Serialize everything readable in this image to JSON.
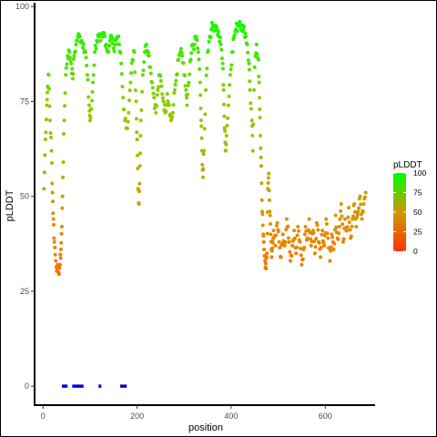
{
  "chart_data": {
    "type": "scatter",
    "title": "",
    "xlabel": "position",
    "ylabel": "pLDDT",
    "xlim": [
      -18,
      706
    ],
    "ylim": [
      -5,
      101
    ],
    "x_ticks": [
      0,
      200,
      400,
      600
    ],
    "y_ticks": [
      0,
      25,
      50,
      75,
      100
    ],
    "grid": false,
    "legend": {
      "title": "pLDDT",
      "placement": "right",
      "labels": [
        "100",
        "75",
        "50",
        "25",
        "0"
      ],
      "gradient": [
        "#00ff00",
        "#ff3300"
      ]
    },
    "colors": {
      "high": "#66ee00",
      "mid": "#cca000",
      "low": "#ee8000",
      "baseline_marks": "#0000dd"
    },
    "baseline_segments": [
      [
        40,
        52
      ],
      [
        62,
        86
      ],
      [
        118,
        124
      ],
      [
        164,
        178
      ]
    ],
    "control_points": [
      [
        2,
        52
      ],
      [
        5,
        65
      ],
      [
        8,
        74
      ],
      [
        10,
        79
      ],
      [
        12,
        82
      ],
      [
        15,
        70
      ],
      [
        18,
        62
      ],
      [
        20,
        51
      ],
      [
        22,
        44
      ],
      [
        24,
        38
      ],
      [
        27,
        33
      ],
      [
        30,
        31
      ],
      [
        33,
        30
      ],
      [
        36,
        32
      ],
      [
        38,
        36
      ],
      [
        40,
        42
      ],
      [
        42,
        55
      ],
      [
        45,
        70
      ],
      [
        48,
        82
      ],
      [
        52,
        87
      ],
      [
        56,
        88
      ],
      [
        60,
        85
      ],
      [
        63,
        81
      ],
      [
        66,
        87
      ],
      [
        70,
        90
      ],
      [
        74,
        92
      ],
      [
        78,
        92
      ],
      [
        82,
        91
      ],
      [
        86,
        90
      ],
      [
        90,
        88
      ],
      [
        94,
        82
      ],
      [
        98,
        74
      ],
      [
        100,
        70
      ],
      [
        103,
        73
      ],
      [
        106,
        80
      ],
      [
        110,
        88
      ],
      [
        114,
        91
      ],
      [
        118,
        92
      ],
      [
        122,
        91
      ],
      [
        126,
        92
      ],
      [
        130,
        93
      ],
      [
        134,
        90
      ],
      [
        138,
        88
      ],
      [
        142,
        91
      ],
      [
        146,
        92
      ],
      [
        150,
        89
      ],
      [
        154,
        91
      ],
      [
        158,
        92
      ],
      [
        162,
        90
      ],
      [
        166,
        85
      ],
      [
        170,
        76
      ],
      [
        174,
        70
      ],
      [
        178,
        68
      ],
      [
        182,
        72
      ],
      [
        186,
        80
      ],
      [
        190,
        86
      ],
      [
        194,
        88
      ],
      [
        198,
        75
      ],
      [
        200,
        65
      ],
      [
        202,
        52
      ],
      [
        204,
        48
      ],
      [
        206,
        58
      ],
      [
        208,
        70
      ],
      [
        212,
        82
      ],
      [
        216,
        88
      ],
      [
        220,
        90
      ],
      [
        224,
        88
      ],
      [
        228,
        84
      ],
      [
        232,
        80
      ],
      [
        236,
        76
      ],
      [
        240,
        72
      ],
      [
        244,
        78
      ],
      [
        248,
        82
      ],
      [
        252,
        79
      ],
      [
        256,
        75
      ],
      [
        260,
        72
      ],
      [
        264,
        77
      ],
      [
        268,
        74
      ],
      [
        272,
        70
      ],
      [
        276,
        72
      ],
      [
        280,
        78
      ],
      [
        284,
        82
      ],
      [
        288,
        86
      ],
      [
        292,
        88
      ],
      [
        296,
        87
      ],
      [
        300,
        82
      ],
      [
        304,
        78
      ],
      [
        306,
        74
      ],
      [
        310,
        80
      ],
      [
        314,
        86
      ],
      [
        318,
        90
      ],
      [
        322,
        90
      ],
      [
        326,
        92
      ],
      [
        330,
        88
      ],
      [
        334,
        80
      ],
      [
        336,
        70
      ],
      [
        338,
        62
      ],
      [
        340,
        55
      ],
      [
        342,
        62
      ],
      [
        346,
        78
      ],
      [
        350,
        88
      ],
      [
        354,
        92
      ],
      [
        358,
        94
      ],
      [
        362,
        95
      ],
      [
        366,
        95
      ],
      [
        370,
        94
      ],
      [
        374,
        92
      ],
      [
        378,
        90
      ],
      [
        382,
        85
      ],
      [
        384,
        78
      ],
      [
        386,
        68
      ],
      [
        388,
        62
      ],
      [
        390,
        66
      ],
      [
        394,
        74
      ],
      [
        398,
        82
      ],
      [
        402,
        88
      ],
      [
        406,
        92
      ],
      [
        410,
        94
      ],
      [
        414,
        95
      ],
      [
        418,
        96
      ],
      [
        422,
        95
      ],
      [
        426,
        94
      ],
      [
        430,
        93
      ],
      [
        434,
        90
      ],
      [
        438,
        85
      ],
      [
        440,
        78
      ],
      [
        444,
        70
      ],
      [
        446,
        62
      ],
      [
        450,
        84
      ],
      [
        454,
        90
      ],
      [
        458,
        86
      ],
      [
        460,
        76
      ],
      [
        462,
        66
      ],
      [
        464,
        58
      ],
      [
        466,
        46
      ],
      [
        468,
        40
      ],
      [
        470,
        36
      ],
      [
        472,
        33
      ],
      [
        474,
        31
      ],
      [
        476,
        35
      ],
      [
        478,
        52
      ],
      [
        480,
        56
      ],
      [
        482,
        46
      ],
      [
        484,
        40
      ],
      [
        486,
        34
      ],
      [
        488,
        38
      ],
      [
        490,
        41
      ],
      [
        494,
        37
      ],
      [
        498,
        43
      ],
      [
        502,
        38
      ],
      [
        506,
        34
      ],
      [
        510,
        40
      ],
      [
        514,
        37
      ],
      [
        518,
        44
      ],
      [
        522,
        39
      ],
      [
        526,
        33
      ],
      [
        530,
        37
      ],
      [
        534,
        41
      ],
      [
        538,
        35
      ],
      [
        542,
        42
      ],
      [
        546,
        38
      ],
      [
        550,
        32
      ],
      [
        554,
        36
      ],
      [
        558,
        42
      ],
      [
        562,
        39
      ],
      [
        566,
        44
      ],
      [
        570,
        37
      ],
      [
        574,
        41
      ],
      [
        578,
        35
      ],
      [
        582,
        43
      ],
      [
        586,
        38
      ],
      [
        590,
        34
      ],
      [
        594,
        41
      ],
      [
        598,
        37
      ],
      [
        602,
        44
      ],
      [
        606,
        39
      ],
      [
        610,
        33
      ],
      [
        614,
        40
      ],
      [
        618,
        36
      ],
      [
        622,
        45
      ],
      [
        626,
        39
      ],
      [
        630,
        42
      ],
      [
        634,
        48
      ],
      [
        638,
        38
      ],
      [
        642,
        44
      ],
      [
        646,
        41
      ],
      [
        650,
        47
      ],
      [
        654,
        39
      ],
      [
        658,
        44
      ],
      [
        662,
        48
      ],
      [
        666,
        42
      ],
      [
        670,
        46
      ],
      [
        674,
        50
      ],
      [
        678,
        44
      ],
      [
        682,
        48
      ],
      [
        686,
        51
      ]
    ]
  }
}
